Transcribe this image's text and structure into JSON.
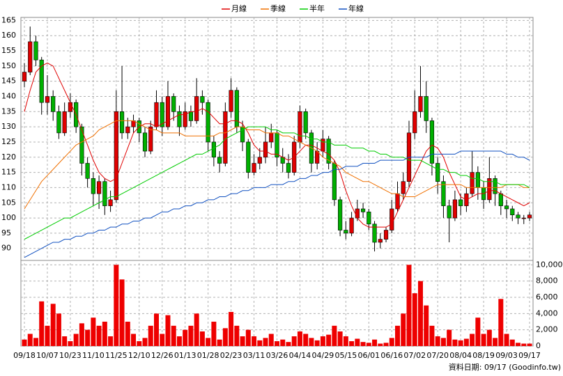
{
  "chart_data": [
    {
      "type": "candlestick",
      "legend": "top",
      "grid": true,
      "up_color": "#e00000",
      "down_color": "#00b000",
      "categories": [
        "09/18",
        null,
        null,
        null,
        "10/07",
        null,
        null,
        null,
        "10/23",
        null,
        null,
        null,
        "11/10",
        null,
        null,
        null,
        "11/25",
        null,
        null,
        null,
        "12/10",
        null,
        null,
        null,
        "12/26",
        null,
        null,
        null,
        "01/13",
        null,
        null,
        null,
        "01/28",
        null,
        null,
        null,
        "02/23",
        null,
        null,
        null,
        "03/11",
        null,
        null,
        null,
        "03/26",
        null,
        null,
        null,
        "04/14",
        null,
        null,
        null,
        "04/29",
        null,
        null,
        null,
        "05/15",
        null,
        null,
        null,
        "06/01",
        null,
        null,
        null,
        "06/16",
        null,
        null,
        null,
        "07/02",
        null,
        null,
        null,
        "07/20",
        null,
        null,
        null,
        "08/04",
        null,
        null,
        null,
        "08/19",
        null,
        null,
        null,
        "09/03",
        null,
        null,
        null,
        "09/17"
      ],
      "open": [
        145,
        148,
        158,
        152,
        138,
        140,
        135,
        128,
        135,
        138,
        130,
        118,
        113,
        108,
        112,
        104,
        106,
        135,
        128,
        130,
        132,
        128,
        122,
        130,
        138,
        130,
        140,
        135,
        130,
        135,
        132,
        140,
        138,
        125,
        120,
        118,
        135,
        142,
        130,
        125,
        115,
        118,
        120,
        125,
        128,
        120,
        118,
        115,
        125,
        135,
        128,
        118,
        122,
        126,
        118,
        106,
        96,
        95,
        100,
        103,
        102,
        98,
        92,
        93,
        96,
        103,
        108,
        112,
        128,
        135,
        140,
        132,
        118,
        112,
        104,
        100,
        106,
        104,
        108,
        115,
        110,
        106,
        113,
        108,
        104,
        103,
        101,
        100,
        100
      ],
      "high": [
        151,
        163,
        160,
        153,
        147,
        142,
        137,
        138,
        141,
        139,
        131,
        120,
        115,
        114,
        113,
        109,
        142,
        150,
        133,
        134,
        133,
        130,
        132,
        142,
        140,
        145,
        141,
        137,
        138,
        137,
        146,
        142,
        139,
        127,
        122,
        138,
        146,
        143,
        132,
        126,
        121,
        123,
        130,
        131,
        129,
        123,
        121,
        127,
        137,
        136,
        129,
        125,
        129,
        127,
        119,
        107,
        99,
        102,
        106,
        105,
        103,
        99,
        95,
        97,
        106,
        112,
        115,
        132,
        142,
        150,
        145,
        133,
        120,
        114,
        106,
        109,
        108,
        110,
        122,
        117,
        112,
        120,
        114,
        109,
        106,
        104,
        102,
        101,
        102
      ],
      "low": [
        143,
        147,
        150,
        134,
        134,
        132,
        126,
        127,
        133,
        128,
        114,
        110,
        104,
        103,
        101,
        102,
        105,
        126,
        126,
        128,
        125,
        120,
        121,
        129,
        127,
        129,
        132,
        127,
        129,
        130,
        131,
        134,
        122,
        117,
        115,
        117,
        133,
        128,
        122,
        113,
        114,
        116,
        118,
        123,
        117,
        115,
        113,
        114,
        123,
        126,
        115,
        116,
        120,
        116,
        104,
        94,
        93,
        94,
        99,
        100,
        96,
        89,
        90,
        92,
        95,
        102,
        106,
        110,
        126,
        133,
        128,
        114,
        108,
        100,
        92,
        99,
        101,
        102,
        107,
        106,
        103,
        105,
        104,
        101,
        100,
        99,
        98,
        98,
        99
      ],
      "close": [
        148,
        158,
        152,
        138,
        140,
        135,
        128,
        135,
        138,
        130,
        118,
        113,
        108,
        112,
        104,
        106,
        135,
        128,
        130,
        132,
        128,
        122,
        130,
        138,
        130,
        140,
        135,
        130,
        135,
        132,
        140,
        138,
        125,
        120,
        118,
        135,
        142,
        130,
        125,
        115,
        118,
        120,
        125,
        128,
        120,
        118,
        115,
        125,
        135,
        128,
        118,
        122,
        126,
        118,
        106,
        96,
        95,
        100,
        103,
        102,
        98,
        92,
        93,
        96,
        103,
        108,
        112,
        128,
        135,
        140,
        132,
        118,
        112,
        104,
        100,
        106,
        104,
        108,
        115,
        110,
        106,
        113,
        108,
        104,
        103,
        101,
        100,
        100,
        101
      ],
      "series": [
        {
          "name": "月線",
          "color": "#e00000",
          "values": [
            135,
            142,
            148,
            150,
            151,
            150,
            146,
            142,
            138,
            134,
            129,
            124,
            119,
            115,
            113,
            112,
            113,
            118,
            123,
            128,
            130,
            131,
            131,
            130,
            131,
            132,
            133,
            134,
            134,
            135,
            135,
            136,
            135,
            133,
            131,
            131,
            132,
            132,
            131,
            128,
            124,
            122,
            122,
            121,
            121,
            120,
            119,
            120,
            122,
            124,
            124,
            123,
            122,
            121,
            119,
            115,
            109,
            104,
            100,
            98,
            97,
            97,
            97,
            97,
            98,
            102,
            106,
            110,
            114,
            118,
            122,
            124,
            123,
            120,
            115,
            111,
            107,
            106,
            107,
            108,
            108,
            109,
            109,
            108,
            107,
            106,
            105,
            104,
            105
          ]
        },
        {
          "name": "季線",
          "color": "#f07000",
          "values": [
            103,
            106,
            109,
            112,
            114,
            116,
            118,
            120,
            122,
            124,
            125,
            126,
            127,
            129,
            130,
            131,
            132,
            132,
            132,
            132,
            131,
            130,
            129,
            129,
            128,
            128,
            128,
            128,
            127,
            127,
            127,
            127,
            127,
            127,
            128,
            128,
            129,
            130,
            130,
            129,
            129,
            129,
            128,
            128,
            128,
            127,
            127,
            126,
            125,
            124,
            123,
            122,
            120,
            119,
            118,
            117,
            115,
            114,
            113,
            112,
            112,
            111,
            110,
            109,
            108,
            108,
            107,
            107,
            107,
            108,
            109,
            110,
            111,
            111,
            111,
            111,
            111,
            110,
            110,
            110,
            110,
            110,
            110,
            110,
            111,
            111,
            111,
            110,
            110
          ]
        },
        {
          "name": "半年",
          "color": "#00cc00",
          "values": [
            93,
            94,
            95,
            96,
            97,
            98,
            99,
            100,
            100,
            101,
            102,
            103,
            104,
            105,
            106,
            107,
            107,
            108,
            109,
            110,
            111,
            112,
            113,
            114,
            115,
            116,
            117,
            118,
            119,
            120,
            121,
            121,
            122,
            123,
            124,
            126,
            127,
            128,
            129,
            130,
            130,
            130,
            130,
            129,
            129,
            128,
            128,
            128,
            127,
            127,
            126,
            126,
            125,
            125,
            124,
            124,
            124,
            123,
            123,
            123,
            122,
            122,
            121,
            121,
            120,
            120,
            120,
            119,
            119,
            119,
            118,
            117,
            116,
            116,
            115,
            115,
            114,
            114,
            113,
            113,
            112,
            112,
            112,
            111,
            111,
            111,
            111,
            111,
            110
          ]
        },
        {
          "name": "年線",
          "color": "#1050c0",
          "values": [
            87,
            88,
            89,
            90,
            91,
            92,
            92,
            93,
            93,
            94,
            94,
            95,
            95,
            96,
            96,
            97,
            97,
            98,
            98,
            99,
            99,
            100,
            100,
            101,
            102,
            102,
            103,
            103,
            104,
            104,
            105,
            105,
            106,
            106,
            107,
            107,
            108,
            108,
            109,
            109,
            110,
            110,
            110,
            111,
            111,
            111,
            112,
            112,
            113,
            113,
            114,
            114,
            115,
            115,
            116,
            116,
            117,
            117,
            117,
            118,
            118,
            118,
            119,
            119,
            119,
            119,
            119,
            120,
            120,
            120,
            120,
            121,
            121,
            121,
            121,
            121,
            122,
            122,
            122,
            122,
            122,
            122,
            122,
            122,
            121,
            121,
            120,
            120,
            119
          ]
        }
      ],
      "ylim": [
        86.5,
        166
      ],
      "yticks": [
        90,
        95,
        100,
        105,
        110,
        115,
        120,
        125,
        130,
        135,
        140,
        145,
        150,
        155,
        160,
        165
      ]
    },
    {
      "type": "bar",
      "color": "#ee0000",
      "values": [
        800,
        1500,
        1000,
        5500,
        2500,
        5200,
        4000,
        1200,
        600,
        1500,
        2800,
        2000,
        3500,
        2500,
        3000,
        1200,
        10000,
        8200,
        3000,
        1500,
        600,
        1000,
        2500,
        4000,
        1500,
        3800,
        2500,
        1200,
        2000,
        2500,
        4000,
        1800,
        1000,
        3000,
        800,
        2200,
        4200,
        2500,
        1200,
        2000,
        1200,
        700,
        1000,
        1500,
        600,
        800,
        500,
        1200,
        1800,
        1500,
        1000,
        700,
        1200,
        1400,
        2500,
        1800,
        1200,
        600,
        900,
        500,
        400,
        800,
        300,
        400,
        1000,
        2500,
        4000,
        10000,
        6500,
        8000,
        5000,
        2500,
        1200,
        1000,
        2000,
        800,
        700,
        900,
        1500,
        3500,
        1500,
        2000,
        1000,
        5800,
        1500,
        800,
        400,
        300,
        300
      ],
      "ylim": [
        0,
        10200
      ],
      "yticks": [
        0,
        {
          "value": 2000,
          "label": "2,000"
        },
        {
          "value": 4000,
          "label": "4,000"
        },
        {
          "value": 6000,
          "label": "6,000"
        },
        {
          "value": 8000,
          "label": "8,000"
        },
        {
          "value": 10000,
          "label": "10,000"
        }
      ]
    }
  ],
  "footer": "資料日期: 09/17 (Goodinfo.tw)"
}
